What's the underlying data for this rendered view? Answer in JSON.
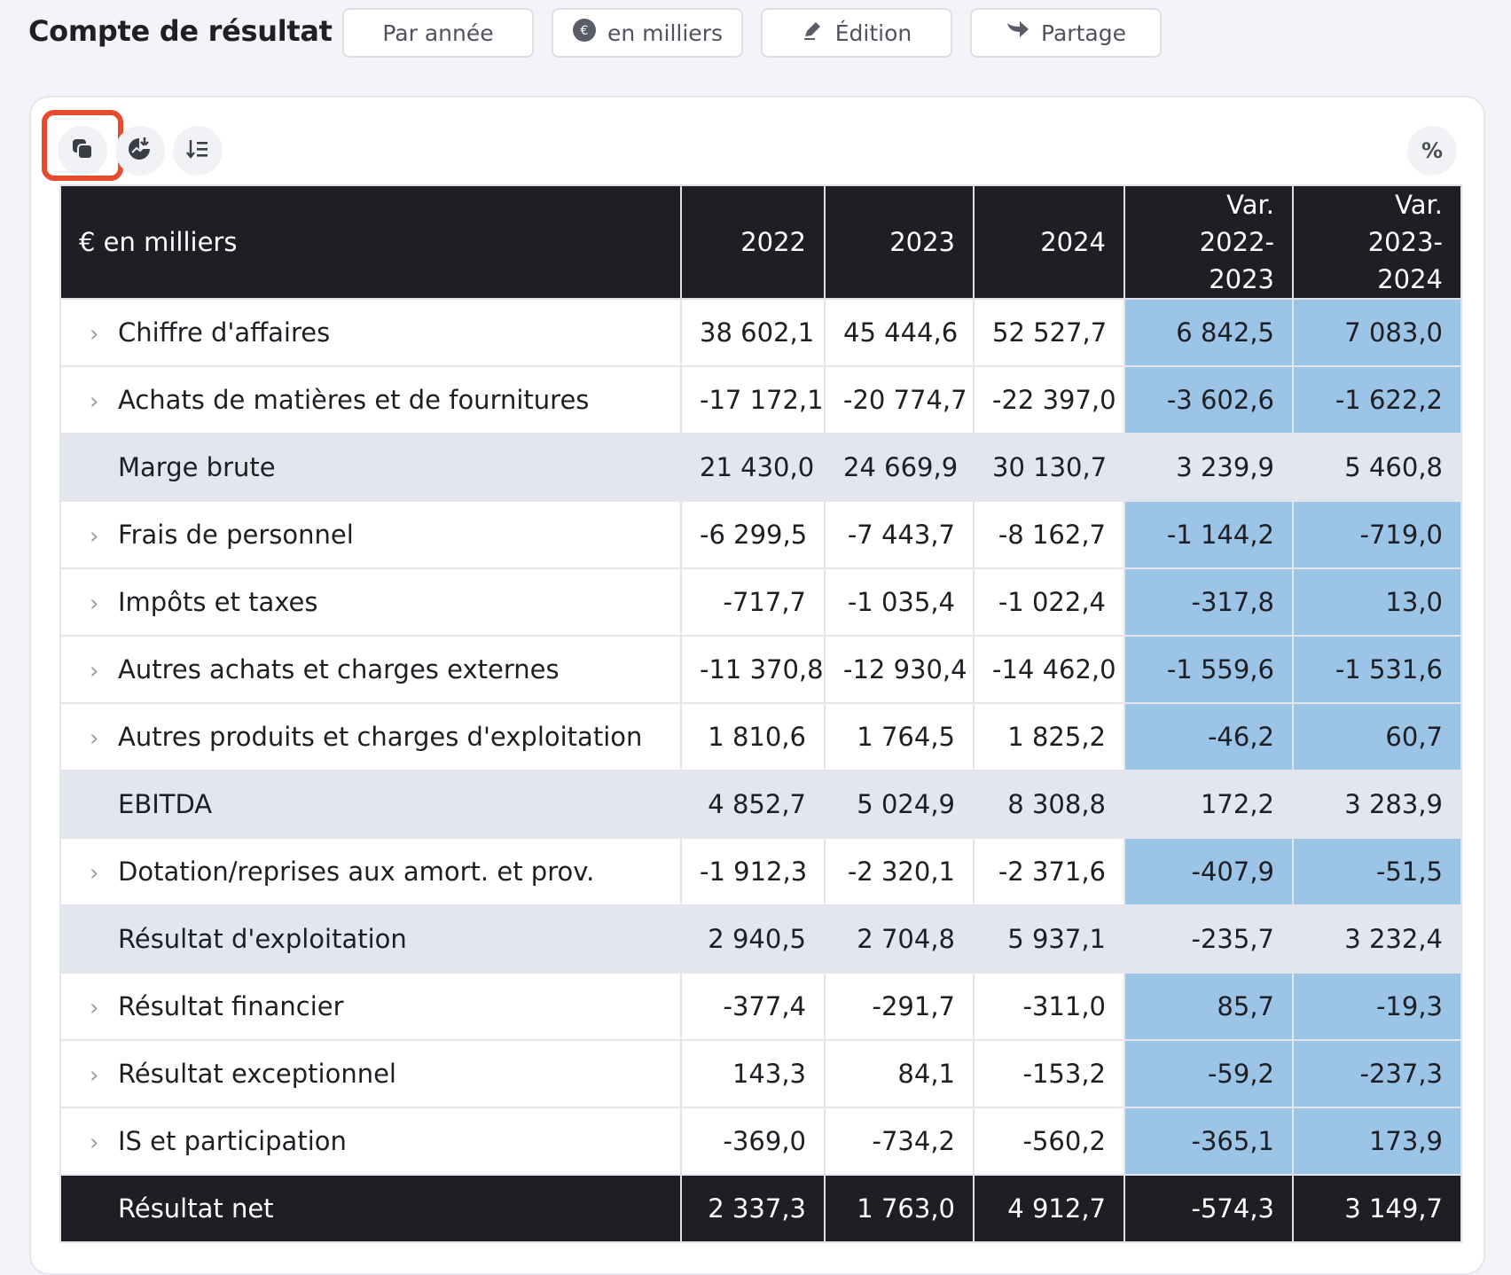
{
  "header": {
    "title": "Compte de résultat",
    "buttons": {
      "period": "Par année",
      "unit": "en milliers",
      "edit": "Édition",
      "share": "Partage"
    }
  },
  "toolbar": {
    "percent_label": "%"
  },
  "table": {
    "columns": {
      "label": "€ en milliers",
      "y2022": "2022",
      "y2023": "2023",
      "y2024": "2024",
      "var1_line1": "Var.",
      "var1_line2": "2022-2023",
      "var2_line1": "Var.",
      "var2_line2": "2023-2024"
    },
    "rows": [
      {
        "label": "Chiffre d'affaires",
        "v2022": "38 602,1",
        "v2023": "45 444,6",
        "v2024": "52 527,7",
        "var1": "6 842,5",
        "var2": "7 083,0"
      },
      {
        "label": "Achats de matières et de fournitures",
        "v2022": "-17 172,1",
        "v2023": "-20 774,7",
        "v2024": "-22 397,0",
        "var1": "-3 602,6",
        "var2": "-1 622,2"
      },
      {
        "label": "Marge brute",
        "v2022": "21 430,0",
        "v2023": "24 669,9",
        "v2024": "30 130,7",
        "var1": "3 239,9",
        "var2": "5 460,8"
      },
      {
        "label": "Frais de personnel",
        "v2022": "-6 299,5",
        "v2023": "-7 443,7",
        "v2024": "-8 162,7",
        "var1": "-1 144,2",
        "var2": "-719,0"
      },
      {
        "label": "Impôts et taxes",
        "v2022": "-717,7",
        "v2023": "-1 035,4",
        "v2024": "-1 022,4",
        "var1": "-317,8",
        "var2": "13,0"
      },
      {
        "label": "Autres achats et charges externes",
        "v2022": "-11 370,8",
        "v2023": "-12 930,4",
        "v2024": "-14 462,0",
        "var1": "-1 559,6",
        "var2": "-1 531,6"
      },
      {
        "label": "Autres produits et charges d'exploitation",
        "v2022": "1 810,6",
        "v2023": "1 764,5",
        "v2024": "1 825,2",
        "var1": "-46,2",
        "var2": "60,7"
      },
      {
        "label": "EBITDA",
        "v2022": "4 852,7",
        "v2023": "5 024,9",
        "v2024": "8 308,8",
        "var1": "172,2",
        "var2": "3 283,9"
      },
      {
        "label": "Dotation/reprises aux amort. et prov.",
        "v2022": "-1 912,3",
        "v2023": "-2 320,1",
        "v2024": "-2 371,6",
        "var1": "-407,9",
        "var2": "-51,5"
      },
      {
        "label": "Résultat d'exploitation",
        "v2022": "2 940,5",
        "v2023": "2 704,8",
        "v2024": "5 937,1",
        "var1": "-235,7",
        "var2": "3 232,4"
      },
      {
        "label": "Résultat financier",
        "v2022": "-377,4",
        "v2023": "-291,7",
        "v2024": "-311,0",
        "var1": "85,7",
        "var2": "-19,3"
      },
      {
        "label": "Résultat exceptionnel",
        "v2022": "143,3",
        "v2023": "84,1",
        "v2024": "-153,2",
        "var1": "-59,2",
        "var2": "-237,3"
      },
      {
        "label": "IS et participation",
        "v2022": "-369,0",
        "v2023": "-734,2",
        "v2024": "-560,2",
        "var1": "-365,1",
        "var2": "173,9"
      },
      {
        "label": "Résultat net",
        "v2022": "2 337,3",
        "v2023": "1 763,0",
        "v2024": "4 912,7",
        "var1": "-574,3",
        "var2": "3 149,7"
      }
    ]
  },
  "colors": {
    "header_bg": "#1e1f24",
    "variation_highlight": "#9cc4e6",
    "subtotal_bg": "#e3e6ee",
    "selection_outline": "#e84a2e"
  },
  "icons": {
    "unit_button": "euro-coin-icon",
    "edit_button": "pencil-icon",
    "share_button": "share-arrow-icon",
    "toolbar": [
      "copy-icon",
      "chart-download-icon",
      "sort-list-icon"
    ]
  }
}
